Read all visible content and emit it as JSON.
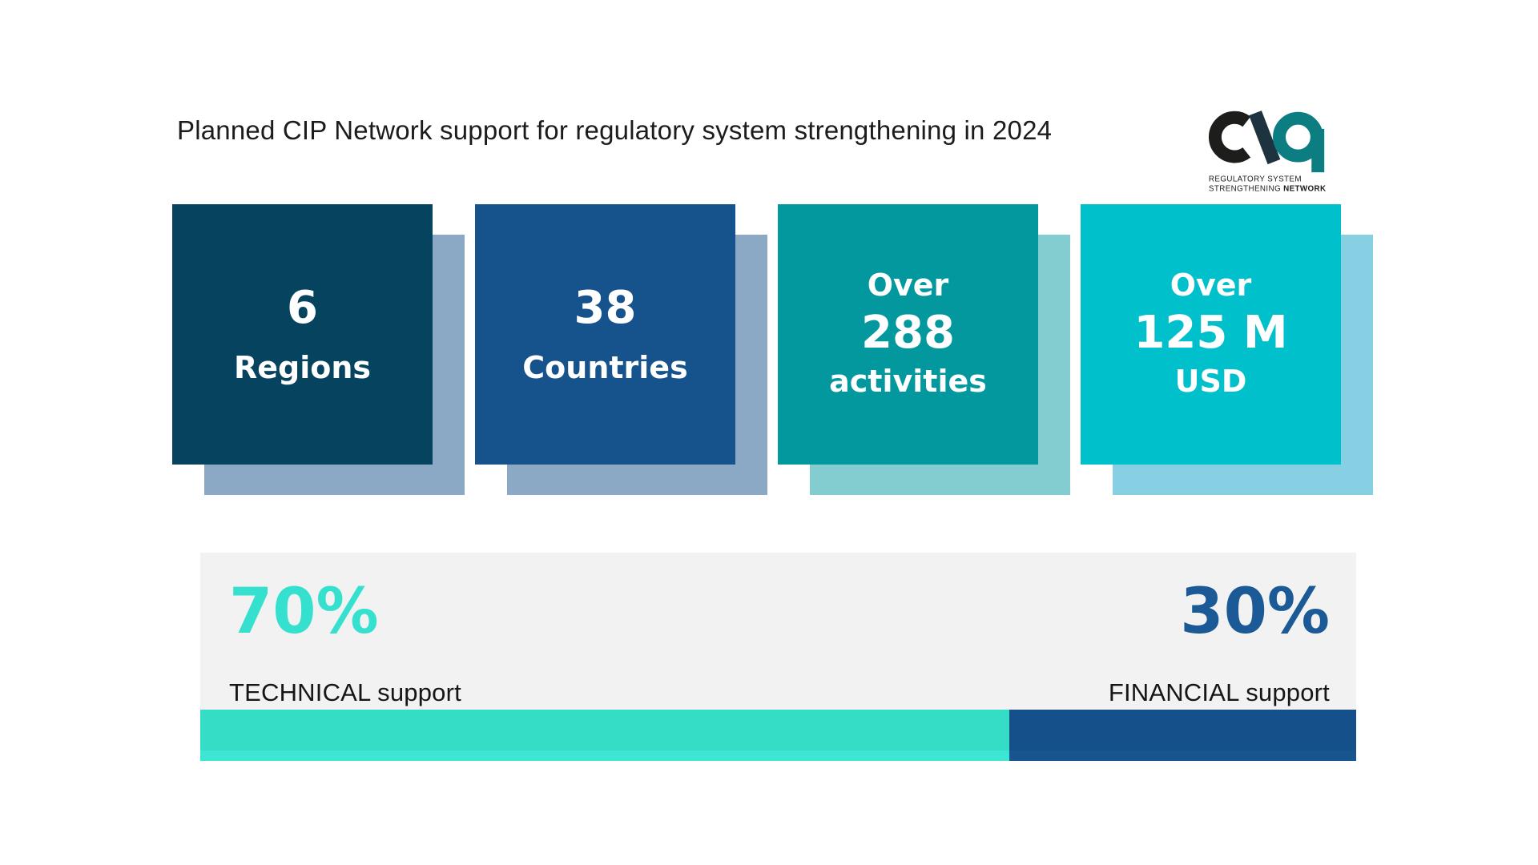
{
  "title": "Planned CIP Network support for regulatory system strengthening in 2024",
  "logo": {
    "icon": "cip-network-logo",
    "tagline_line1": "REGULATORY SYSTEM",
    "tagline_line2_normal": "STRENGTHENING ",
    "tagline_line2_bold": "NETWORK",
    "colors": {
      "black": "#1d1d1b",
      "slate": "#1e3340",
      "teal": "#0c7d80"
    }
  },
  "cards": [
    {
      "prefix": "",
      "value": "6",
      "label": "Regions",
      "bg": "#05435e",
      "shadow": "#8ba9c5"
    },
    {
      "prefix": "",
      "value": "38",
      "label": "Countries",
      "bg": "#16538d",
      "shadow": "#8ba9c5"
    },
    {
      "prefix": "Over",
      "value": "288",
      "label": "activities",
      "bg": "#02989e",
      "shadow": "#83ccd0"
    },
    {
      "prefix": "Over",
      "value": "125 M",
      "label": "USD",
      "bg": "#00c1cb",
      "shadow": "#87d0e4"
    }
  ],
  "split": {
    "panel_bg": "#f2f2f3",
    "technical": {
      "percent": "70%",
      "value": 70,
      "label": "TECHNICAL support",
      "text_color": "#35e1ce",
      "bar_color": "#35dcc6",
      "bar_light": "#3ce6d2"
    },
    "financial": {
      "percent": "30%",
      "value": 30,
      "label": "FINANCIAL support",
      "text_color": "#1b5a96",
      "bar_color": "#15508a",
      "bar_light": "#18548e"
    }
  },
  "chart_data": {
    "type": "bar",
    "title": "Planned CIP Network support for regulatory system strengthening in 2024",
    "categories": [
      "TECHNICAL support",
      "FINANCIAL support"
    ],
    "values": [
      70,
      30
    ],
    "unit": "%",
    "legend_position": "none",
    "grid": false,
    "stat_callouts": [
      {
        "qualifier": "",
        "value": 6,
        "label": "Regions"
      },
      {
        "qualifier": "",
        "value": 38,
        "label": "Countries"
      },
      {
        "qualifier": "Over",
        "value": 288,
        "label": "activities"
      },
      {
        "qualifier": "Over",
        "value": "125 M",
        "label": "USD"
      }
    ]
  }
}
